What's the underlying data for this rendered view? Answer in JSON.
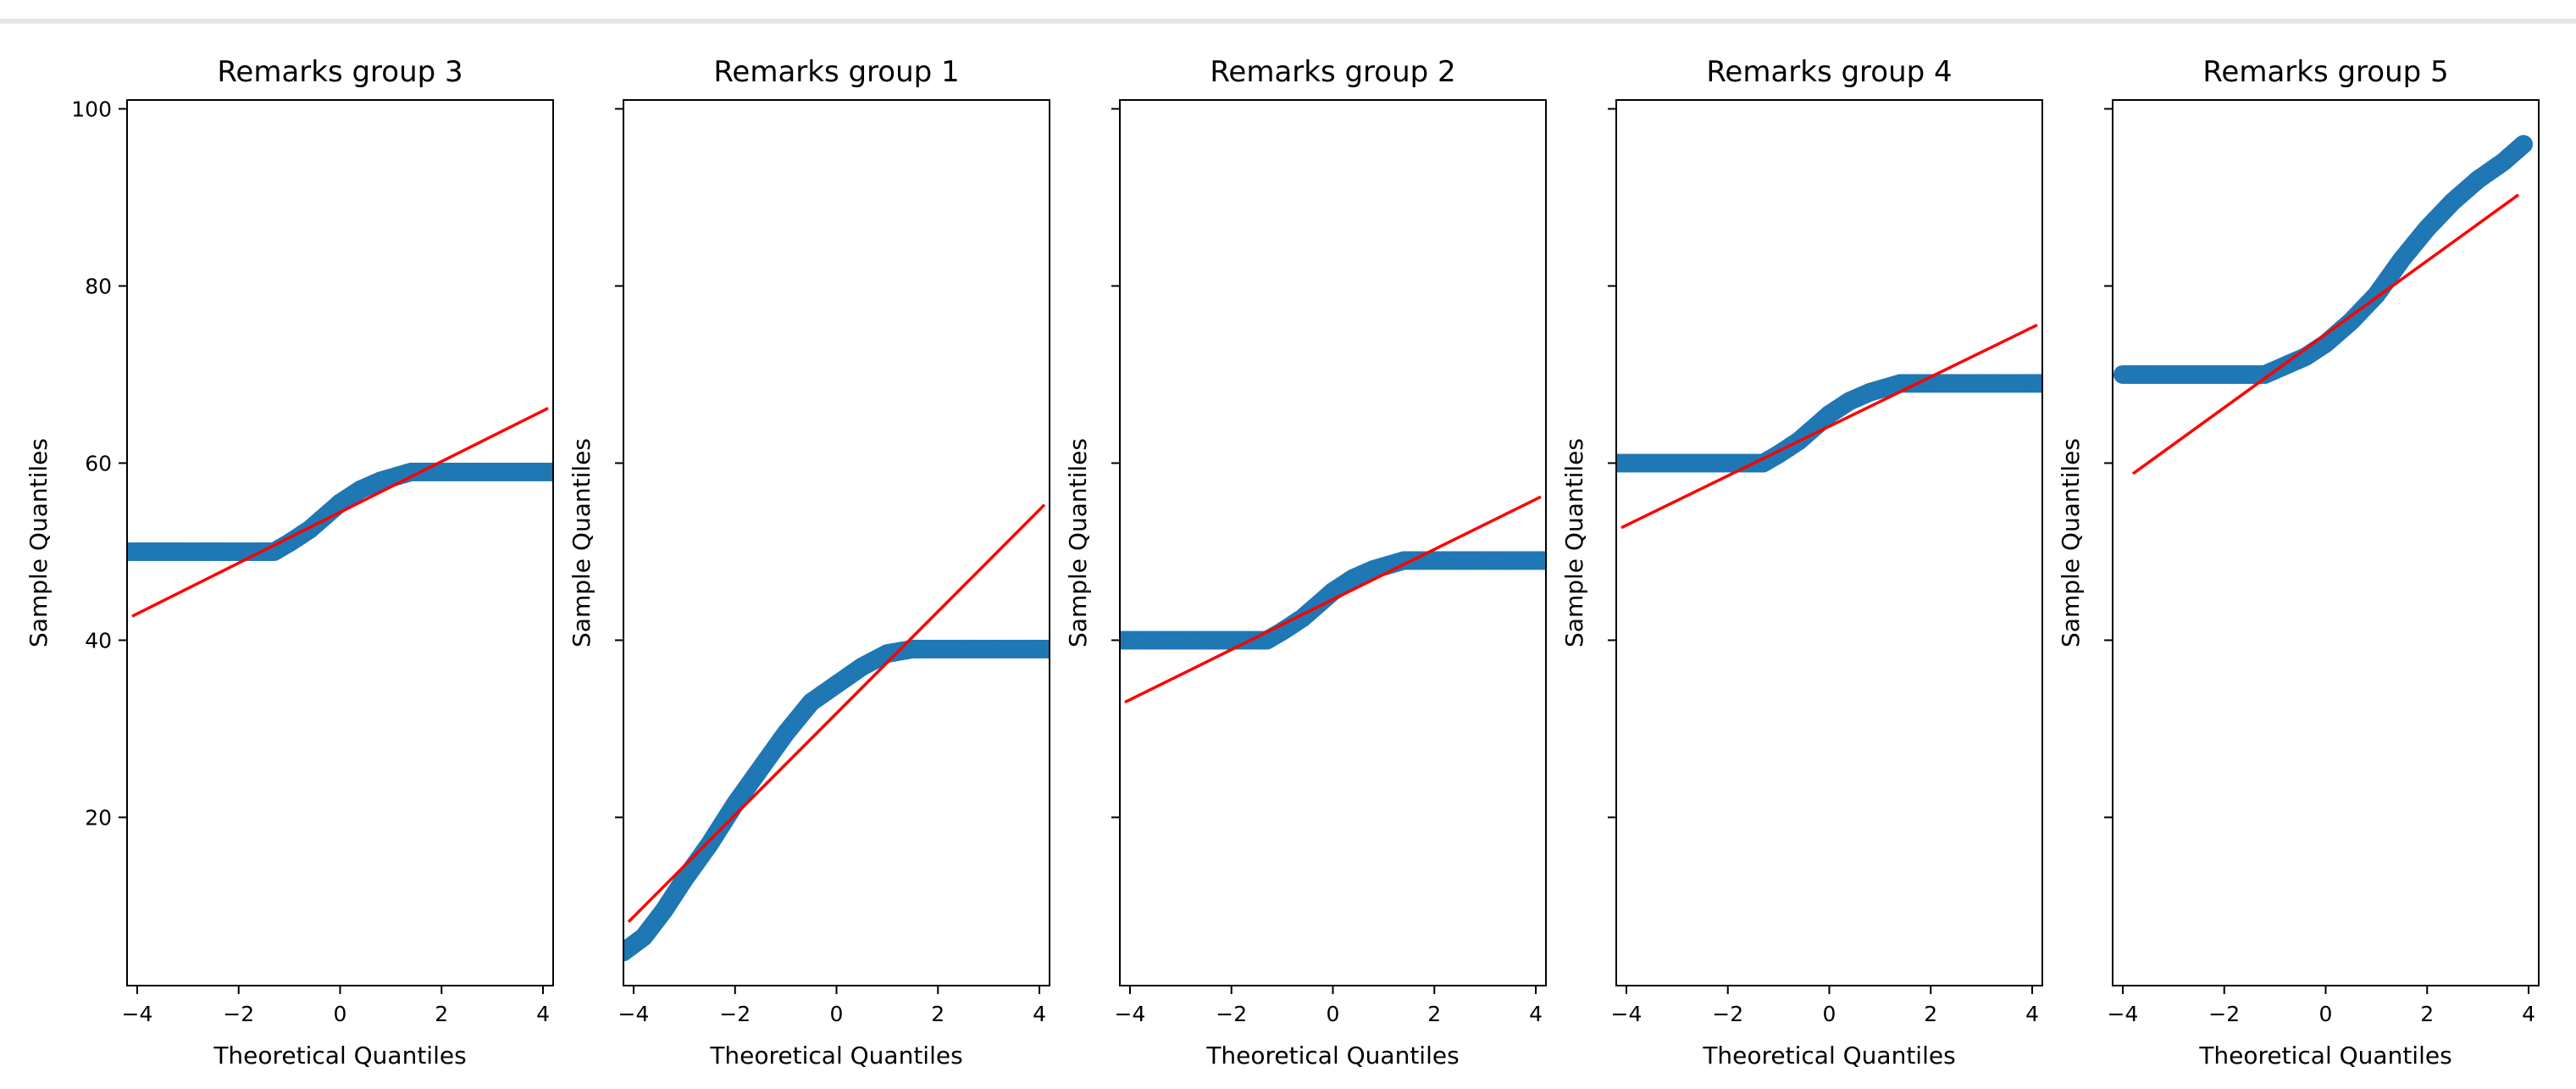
{
  "chart_data": [
    {
      "type": "scatter",
      "title": "Remarks group 3",
      "xlabel": "Theoretical Quantiles",
      "ylabel": "Sample Quantiles",
      "xlim": [
        -4.2,
        4.2
      ],
      "ylim": [
        1,
        101
      ],
      "xticks": [
        -4,
        -2,
        0,
        2,
        4
      ],
      "yticks": [
        20,
        40,
        60,
        80,
        100
      ],
      "show_yticklabels": true,
      "sample_points": [
        [
          -4.2,
          50
        ],
        [
          -1.3,
          50
        ],
        [
          -1,
          51
        ],
        [
          -0.6,
          52.5
        ],
        [
          -0.3,
          54
        ],
        [
          0,
          55.5
        ],
        [
          0.4,
          57
        ],
        [
          0.8,
          58
        ],
        [
          1.4,
          59
        ],
        [
          4.2,
          59
        ]
      ],
      "reference_line": {
        "x": [
          -4.1,
          4.1
        ],
        "y": [
          42.7,
          66.2
        ]
      },
      "marker_color": "#1f77b4",
      "line_color": "#ff0000"
    },
    {
      "type": "scatter",
      "title": "Remarks group 1",
      "xlabel": "Theoretical Quantiles",
      "ylabel": "Sample Quantiles",
      "xlim": [
        -4.2,
        4.2
      ],
      "ylim": [
        1,
        101
      ],
      "xticks": [
        -4,
        -2,
        0,
        2,
        4
      ],
      "yticks": [
        20,
        40,
        60,
        80,
        100
      ],
      "show_yticklabels": false,
      "sample_points": [
        [
          -4.2,
          4.8
        ],
        [
          -3.8,
          6.5
        ],
        [
          -3.4,
          9.5
        ],
        [
          -3,
          13
        ],
        [
          -2.5,
          17
        ],
        [
          -2,
          21.5
        ],
        [
          -1.5,
          25.5
        ],
        [
          -1,
          29.5
        ],
        [
          -0.5,
          33
        ],
        [
          0,
          35
        ],
        [
          0.5,
          37
        ],
        [
          1,
          38.5
        ],
        [
          1.5,
          39
        ],
        [
          4.2,
          39
        ]
      ],
      "reference_line": {
        "x": [
          -4.1,
          4.1
        ],
        "y": [
          8.2,
          55.3
        ]
      },
      "marker_color": "#1f77b4",
      "line_color": "#ff0000"
    },
    {
      "type": "scatter",
      "title": "Remarks group 2",
      "xlabel": "Theoretical Quantiles",
      "ylabel": "Sample Quantiles",
      "xlim": [
        -4.2,
        4.2
      ],
      "ylim": [
        1,
        101
      ],
      "xticks": [
        -4,
        -2,
        0,
        2,
        4
      ],
      "yticks": [
        20,
        40,
        60,
        80,
        100
      ],
      "show_yticklabels": false,
      "sample_points": [
        [
          -4.2,
          40
        ],
        [
          -1.3,
          40
        ],
        [
          -1,
          41
        ],
        [
          -0.6,
          42.5
        ],
        [
          -0.3,
          44
        ],
        [
          0,
          45.5
        ],
        [
          0.4,
          47
        ],
        [
          0.8,
          48
        ],
        [
          1.4,
          49
        ],
        [
          4.2,
          49
        ]
      ],
      "reference_line": {
        "x": [
          -4.1,
          4.1
        ],
        "y": [
          33,
          56.2
        ]
      },
      "marker_color": "#1f77b4",
      "line_color": "#ff0000"
    },
    {
      "type": "scatter",
      "title": "Remarks group 4",
      "xlabel": "Theoretical Quantiles",
      "ylabel": "Sample Quantiles",
      "xlim": [
        -4.2,
        4.2
      ],
      "ylim": [
        1,
        101
      ],
      "xticks": [
        -4,
        -2,
        0,
        2,
        4
      ],
      "yticks": [
        20,
        40,
        60,
        80,
        100
      ],
      "show_yticklabels": false,
      "sample_points": [
        [
          -4.2,
          60
        ],
        [
          -1.3,
          60
        ],
        [
          -1,
          61
        ],
        [
          -0.6,
          62.5
        ],
        [
          -0.3,
          64
        ],
        [
          0,
          65.5
        ],
        [
          0.4,
          67
        ],
        [
          0.8,
          68
        ],
        [
          1.4,
          69
        ],
        [
          4.2,
          69
        ]
      ],
      "reference_line": {
        "x": [
          -4.1,
          4.1
        ],
        "y": [
          52.7,
          75.6
        ]
      },
      "marker_color": "#1f77b4",
      "line_color": "#ff0000"
    },
    {
      "type": "scatter",
      "title": "Remarks group 5",
      "xlabel": "Theoretical Quantiles",
      "ylabel": "Sample Quantiles",
      "xlim": [
        -4.2,
        4.2
      ],
      "ylim": [
        1,
        101
      ],
      "xticks": [
        -4,
        -2,
        0,
        2,
        4
      ],
      "yticks": [
        20,
        40,
        60,
        80,
        100
      ],
      "show_yticklabels": false,
      "sample_points": [
        [
          -4,
          70
        ],
        [
          -1.2,
          70
        ],
        [
          -0.8,
          71
        ],
        [
          -0.4,
          72
        ],
        [
          0,
          73.5
        ],
        [
          0.5,
          76
        ],
        [
          1,
          79
        ],
        [
          1.5,
          83
        ],
        [
          2,
          86.5
        ],
        [
          2.5,
          89.5
        ],
        [
          3,
          92
        ],
        [
          3.5,
          94
        ],
        [
          3.9,
          96
        ]
      ],
      "reference_line": {
        "x": [
          -3.8,
          3.8
        ],
        "y": [
          58.8,
          90.3
        ]
      },
      "marker_color": "#1f77b4",
      "line_color": "#ff0000"
    }
  ]
}
